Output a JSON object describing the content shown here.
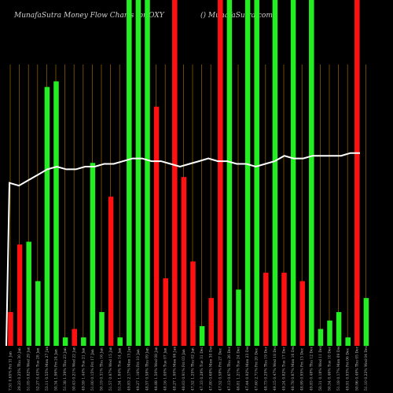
{
  "header": {
    "title_left": "MunafaSutra  Money Flow  Charts for OXY",
    "title_right": "() MunafaSutra.com"
  },
  "colors": {
    "background": "#000000",
    "up": "#22ee22",
    "down": "#ff1111",
    "grid": "#8a5a00",
    "line": "#ffffff"
  },
  "chart_data": {
    "type": "bar",
    "title": "MunafaSutra  Money Flow  Charts for OXY",
    "ylim": [
      0,
      100
    ],
    "categories": [
      "Fri 31 Jan",
      "Thu 30 Jan",
      "Wed 29 Jan",
      "Tue 28 Jan",
      "Mon 27 Jan",
      "Fri 24 Jan",
      "Thu 23 Jan",
      "Wed 22 Jan",
      "Tue 21 Jan",
      "Fri 17 Jan",
      "Thu 16 Jan",
      "Wed 15 Jan",
      "Tue 14 Jan",
      "Mon 13 Jan",
      "Fri 10 Jan",
      "Thu 09 Jan",
      "Wed 08 Jan",
      "Tue 07 Jan",
      "Mon 06 Jan",
      "Fri 03 Jan",
      "Thu 02 Jan",
      "Tue 31 Dec",
      "Mon 30 Dec",
      "Fri 27 Dec",
      "Thu 26 Dec",
      "Tue 24 Dec",
      "Mon 23 Dec",
      "Fri 20 Dec",
      "Thu 19 Dec",
      "Wed 18 Dec",
      "Tue 17 Dec",
      "Mon 16 Dec",
      "Fri 13 Dec",
      "Thu 12 Dec",
      "Wed 11 Dec",
      "Tue 10 Dec",
      "Mon 09 Dec",
      "Fri 06 Dec",
      "Thu 05 Dec",
      "Wed 04 Dec"
    ],
    "values": [
      12,
      36,
      37,
      23,
      92,
      94,
      3,
      6,
      3,
      65,
      12,
      53,
      3,
      100,
      100,
      100,
      85,
      24,
      100,
      60,
      30,
      7,
      17,
      100,
      100,
      20,
      100,
      100,
      26,
      100,
      26,
      100,
      23,
      100,
      6,
      9,
      12,
      3,
      100,
      17
    ],
    "directions": [
      "down",
      "down",
      "up",
      "up",
      "up",
      "up",
      "up",
      "down",
      "up",
      "up",
      "up",
      "down",
      "up",
      "up",
      "up",
      "up",
      "down",
      "down",
      "down",
      "down",
      "down",
      "up",
      "down",
      "down",
      "up",
      "up",
      "up",
      "up",
      "down",
      "up",
      "down",
      "up",
      "down",
      "up",
      "up",
      "up",
      "up",
      "up",
      "down",
      "up"
    ],
    "line_values": [
      60,
      59,
      61,
      63,
      65,
      66,
      65,
      65,
      66,
      66,
      67,
      67,
      68,
      69,
      69,
      68,
      68,
      67,
      66,
      67,
      68,
      69,
      68,
      68,
      67,
      67,
      66,
      67,
      68,
      70,
      69,
      69,
      70,
      70,
      70,
      70,
      71,
      71
    ],
    "line_start_values": [
      0,
      60
    ],
    "tick_labels": [
      "7.51 0.65%",
      "29.23 0.25%",
      "51.05 0.82%",
      "52.27 0.43%",
      "53.11 0.55%",
      "50.34 1.96%",
      "51.38 1.39%",
      "50.43 0.21%",
      "49.59 1.44%",
      "51.00 0.15%",
      "50.19 0.31%",
      "51.57 0.97%",
      "51.54 1.84%",
      "49.83 2.17%",
      "49.27 1.16%",
      "48.57 0.58%",
      "48.88 1.50%",
      "48.16 1.00%",
      "48.27 1.90%",
      "48.03 0.91%",
      "47.52 1.25%",
      "47.33 0.28%",
      "47.80 0.68%",
      "47.52 0.58%",
      "47.13 0.67%",
      "46.81 1.21%",
      "47.44 0.92%",
      "47.60 2.71%",
      "48.73 0.25%",
      "49.15 0.47%",
      "49.24 0.82%",
      "48.78 0.87%",
      "48.99 0.95%",
      "49.83 0.48%",
      "50.31 0.18%",
      "50.54 0.46%",
      "51.18 0.17%",
      "49.91 0.93%",
      "50.96 0.49%",
      "51.10 0.22%"
    ]
  }
}
